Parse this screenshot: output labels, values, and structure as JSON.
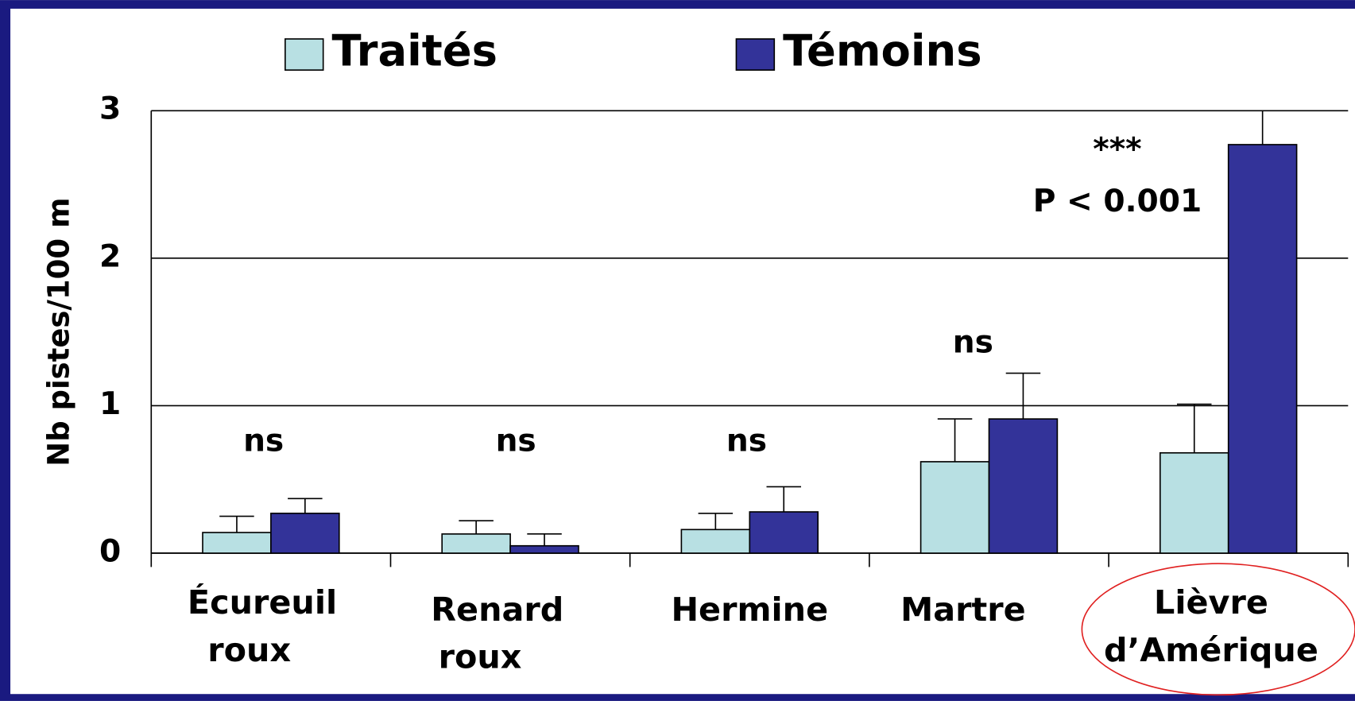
{
  "chart_data": {
    "type": "bar",
    "categories": [
      [
        "Écureuil",
        "roux"
      ],
      [
        "Renard",
        "roux"
      ],
      [
        "Hermine"
      ],
      [
        "Martre"
      ],
      [
        "Lièvre",
        "d’Amérique"
      ]
    ],
    "series": [
      {
        "name": "Traités",
        "color": "#b8e0e3",
        "values": [
          0.14,
          0.13,
          0.16,
          0.62,
          0.68
        ],
        "errors": [
          0.11,
          0.09,
          0.11,
          0.29,
          0.33
        ]
      },
      {
        "name": "Témoins",
        "color": "#333399",
        "values": [
          0.27,
          0.05,
          0.28,
          0.91,
          2.77
        ],
        "errors": [
          0.1,
          0.08,
          0.17,
          0.31,
          0.23
        ]
      }
    ],
    "y_label": "Nb pistes/100 m",
    "ylim": [
      0,
      3
    ],
    "yticks": [
      0,
      1,
      2,
      3
    ],
    "grid": true,
    "annotations": [
      "ns",
      "ns",
      "ns",
      "ns",
      "***",
      "P < 0.001"
    ],
    "legend": "top"
  }
}
